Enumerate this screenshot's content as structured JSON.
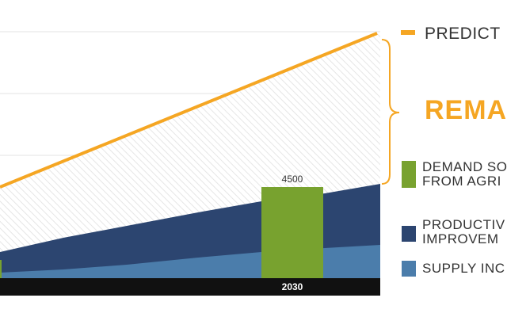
{
  "chart_data": {
    "type": "area",
    "x_label_visible": "2030",
    "predicted_demand": {
      "name": "PREDICTED DEMAND",
      "color": "#f5a623"
    },
    "remaining_label": "REMAINING",
    "series": [
      {
        "name": "DEMAND SOLVED FROM AGRICULTURE",
        "label_lines": [
          "DEMAND SO",
          "FROM AGRI"
        ],
        "color": "#78a22f"
      },
      {
        "name": "PRODUCTIVITY IMPROVEMENT",
        "label_lines": [
          "PRODUCTIV",
          "IMPROVEM"
        ],
        "color": "#2c4570"
      },
      {
        "name": "SUPPLY INCREASE",
        "label_lines": [
          "SUPPLY INC"
        ],
        "color": "#4b7dab"
      }
    ],
    "bar_value_label": "4500",
    "legend_visible_texts": {
      "predicted": "PREDICT",
      "remaining": "REMA",
      "agri": [
        "DEMAND SO",
        "FROM AGRI"
      ],
      "productivity": [
        "PRODUCTIV",
        "IMPROVEM"
      ],
      "supply": [
        "SUPPLY INC"
      ]
    },
    "grid": true
  }
}
